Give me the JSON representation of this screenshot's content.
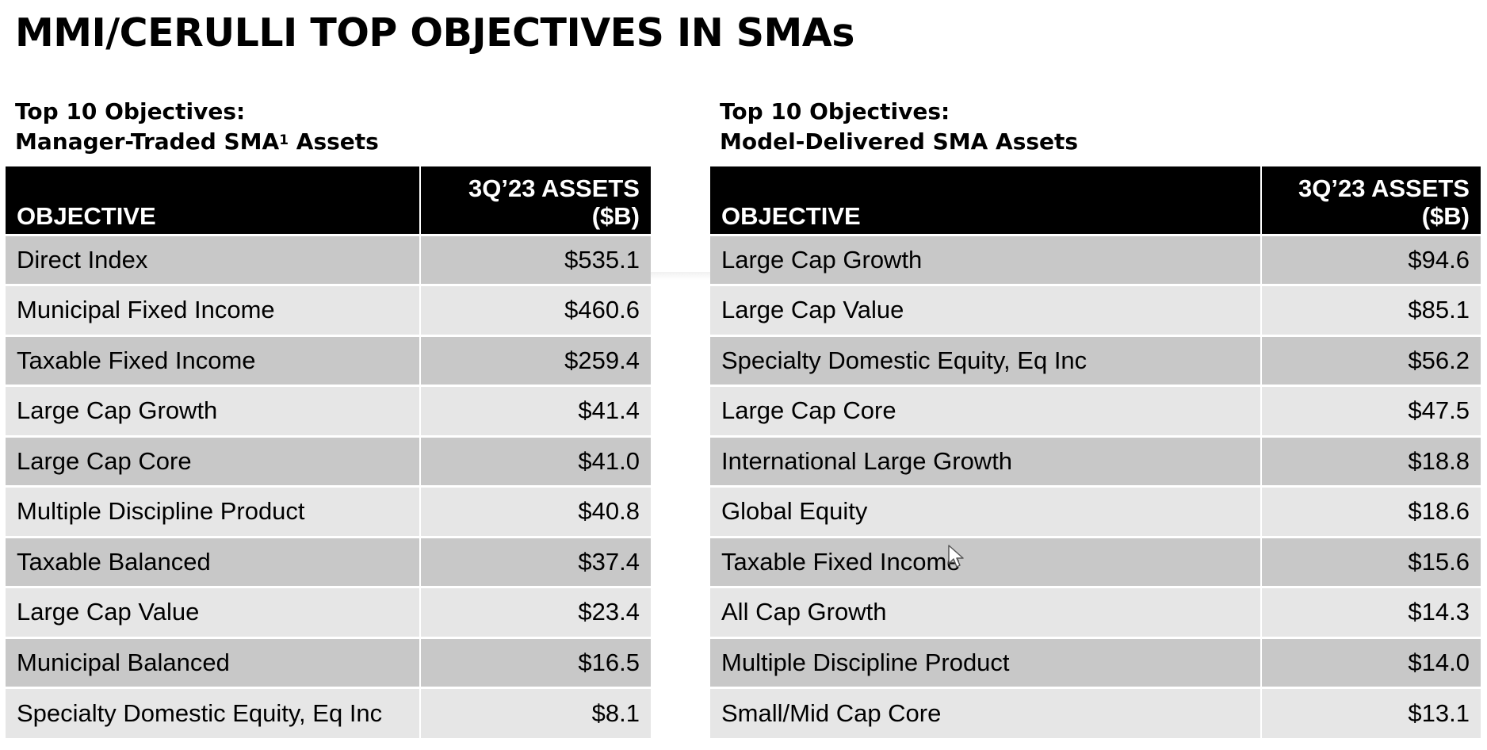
{
  "title": "MMI/CERULLI TOP OBJECTIVES IN SMAs",
  "left_section": {
    "subtitle_line1": "Top 10 Objectives:",
    "subtitle_line2_pre": "Manager-Traded SMA",
    "subtitle_superscript": "1",
    "subtitle_line2_post": " Assets",
    "table": {
      "header_objective": "OBJECTIVE",
      "header_assets_line1": "3Q’23 ASSETS",
      "header_assets_line2": "($B)",
      "rows": [
        {
          "objective": "Direct Index",
          "assets": "$535.1"
        },
        {
          "objective": "Municipal Fixed Income",
          "assets": "$460.6"
        },
        {
          "objective": "Taxable Fixed Income",
          "assets": "$259.4"
        },
        {
          "objective": "Large Cap Growth",
          "assets": "$41.4"
        },
        {
          "objective": "Large Cap Core",
          "assets": "$41.0"
        },
        {
          "objective": "Multiple Discipline Product",
          "assets": "$40.8"
        },
        {
          "objective": "Taxable Balanced",
          "assets": "$37.4"
        },
        {
          "objective": "Large Cap Value",
          "assets": "$23.4"
        },
        {
          "objective": "Municipal Balanced",
          "assets": "$16.5"
        },
        {
          "objective": "Specialty Domestic Equity, Eq Inc",
          "assets": "$8.1"
        }
      ]
    }
  },
  "right_section": {
    "subtitle_line1": "Top 10 Objectives:",
    "subtitle_line2": "Model-Delivered SMA Assets",
    "table": {
      "header_objective": "OBJECTIVE",
      "header_assets_line1": "3Q’23 ASSETS",
      "header_assets_line2": "($B)",
      "rows": [
        {
          "objective": "Large Cap Growth",
          "assets": "$94.6"
        },
        {
          "objective": "Large Cap Value",
          "assets": "$85.1"
        },
        {
          "objective": "Specialty Domestic Equity, Eq Inc",
          "assets": "$56.2"
        },
        {
          "objective": "Large Cap Core",
          "assets": "$47.5"
        },
        {
          "objective": "International Large Growth",
          "assets": "$18.8"
        },
        {
          "objective": "Global Equity",
          "assets": "$18.6"
        },
        {
          "objective": "Taxable Fixed Income",
          "assets": "$15.6"
        },
        {
          "objective": "All Cap Growth",
          "assets": "$14.3"
        },
        {
          "objective": "Multiple Discipline Product",
          "assets": "$14.0"
        },
        {
          "objective": "Small/Mid Cap Core",
          "assets": "$13.1"
        }
      ]
    }
  },
  "colors": {
    "header_bg": "#000000",
    "row_dark": "#c8c8c8",
    "row_light": "#e6e6e6"
  },
  "icons": {
    "cursor": "mouse-pointer-icon"
  }
}
